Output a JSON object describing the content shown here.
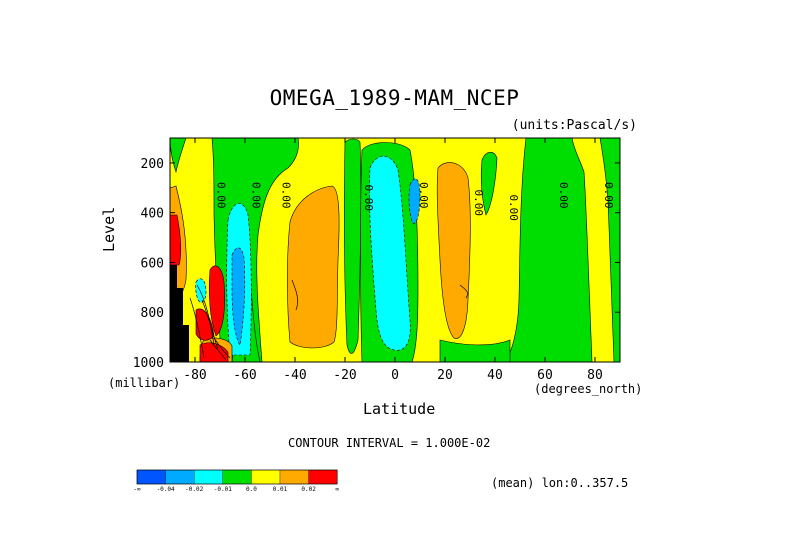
{
  "chart_data": {
    "type": "heatmap",
    "title": "OMEGA_1989-MAM_NCEP",
    "units": "(units:Pascal/s)",
    "xlabel": "Latitude",
    "x_unit_label": "(degrees_north)",
    "ylabel": "Level",
    "y_unit_label": "(millibar)",
    "xlim": [
      -90,
      90
    ],
    "ylim": [
      1000,
      100
    ],
    "y_inverted": true,
    "x_ticks": [
      "-80",
      "-60",
      "-40",
      "-20",
      "0",
      "20",
      "40",
      "60",
      "80"
    ],
    "y_ticks": [
      "200",
      "400",
      "600",
      "800",
      "1000"
    ],
    "contour_interval_text": "CONTOUR INTERVAL = 1.000E-02",
    "contour_labels": [
      "0.00",
      "0.00",
      "0.00",
      "0.00",
      "0.00",
      "0.00",
      "0.00",
      "0.00",
      "0.00"
    ],
    "mean_text": "(mean) lon:0..357.5",
    "colorbar": {
      "colors": [
        "#0055ff",
        "#00aaff",
        "#00ffff",
        "#00dd00",
        "#ffff00",
        "#ffaa00",
        "#ff0000"
      ],
      "labels": [
        "-∞",
        "-0.04",
        "-0.02",
        "-0.01",
        "0.0",
        "0.01",
        "0.02",
        "∞"
      ]
    },
    "background_color": "#ffff00"
  }
}
